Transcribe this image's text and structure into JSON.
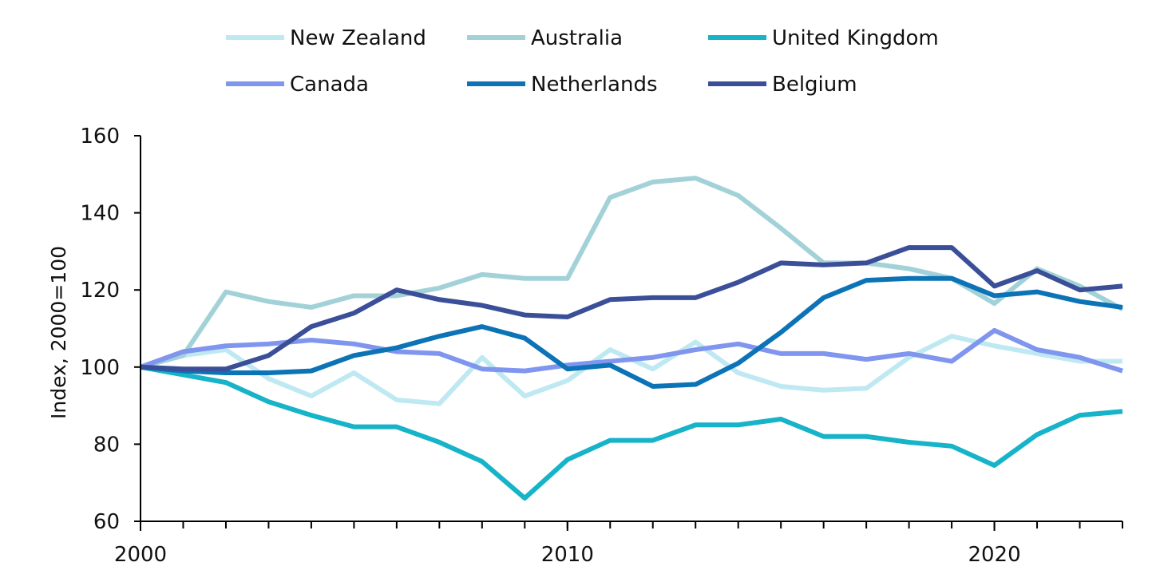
{
  "chart_data": {
    "type": "line",
    "title": "",
    "xlabel": "",
    "ylabel": "Index, 2000=100",
    "xlim": [
      2000,
      2023
    ],
    "ylim": [
      60,
      160
    ],
    "x_ticks": [
      2000,
      2010,
      2020
    ],
    "y_ticks": [
      60,
      80,
      100,
      120,
      140,
      160
    ],
    "grid": false,
    "legend_position": "top",
    "x": [
      2000,
      2001,
      2002,
      2003,
      2004,
      2005,
      2006,
      2007,
      2008,
      2009,
      2010,
      2011,
      2012,
      2013,
      2014,
      2015,
      2016,
      2017,
      2018,
      2019,
      2020,
      2021,
      2022,
      2023
    ],
    "series": [
      {
        "name": "New Zealand",
        "color": "#bfe9f2",
        "values": [
          100,
          103,
          104.5,
          97,
          92.5,
          98.5,
          91.5,
          90.5,
          102.5,
          92.5,
          96.5,
          104.5,
          99.5,
          106.5,
          98.5,
          95,
          94,
          94.5,
          102.5,
          108,
          105.5,
          103.5,
          101.5,
          101.5
        ]
      },
      {
        "name": "Australia",
        "color": "#a2d2d8",
        "values": [
          100,
          103,
          119.5,
          117,
          115.5,
          118.5,
          118.5,
          120.5,
          124,
          123,
          123,
          144,
          148,
          149,
          144.5,
          136,
          127,
          127,
          125.5,
          123,
          116.5,
          125.5,
          121,
          115
        ]
      },
      {
        "name": "United Kingdom",
        "color": "#17b3c8",
        "values": [
          100,
          98,
          96,
          91,
          87.5,
          84.5,
          84.5,
          80.5,
          75.5,
          66,
          76,
          81,
          81,
          85,
          85,
          86.5,
          82,
          82,
          80.5,
          79.5,
          74.5,
          82.5,
          87.5,
          88.5
        ]
      },
      {
        "name": "Canada",
        "color": "#8096ee",
        "values": [
          100,
          104,
          105.5,
          106,
          107,
          106,
          104,
          103.5,
          99.5,
          99,
          100.5,
          101.5,
          102.5,
          104.5,
          106,
          103.5,
          103.5,
          102,
          103.5,
          101.5,
          109.5,
          104.5,
          102.5,
          99
        ]
      },
      {
        "name": "Netherlands",
        "color": "#0c73b6",
        "values": [
          100,
          99,
          98.5,
          98.5,
          99,
          103,
          105,
          108,
          110.5,
          107.5,
          99.5,
          100.5,
          95,
          95.5,
          101,
          109,
          118,
          122.5,
          123,
          123,
          118.5,
          119.5,
          117,
          115.5
        ]
      },
      {
        "name": "Belgium",
        "color": "#3a4f98",
        "values": [
          100,
          99.5,
          99.5,
          103,
          110.5,
          114,
          120,
          117.5,
          116,
          113.5,
          113,
          117.5,
          118,
          118,
          122,
          127,
          126.5,
          127,
          131,
          131,
          121,
          125,
          120,
          121
        ]
      }
    ]
  }
}
